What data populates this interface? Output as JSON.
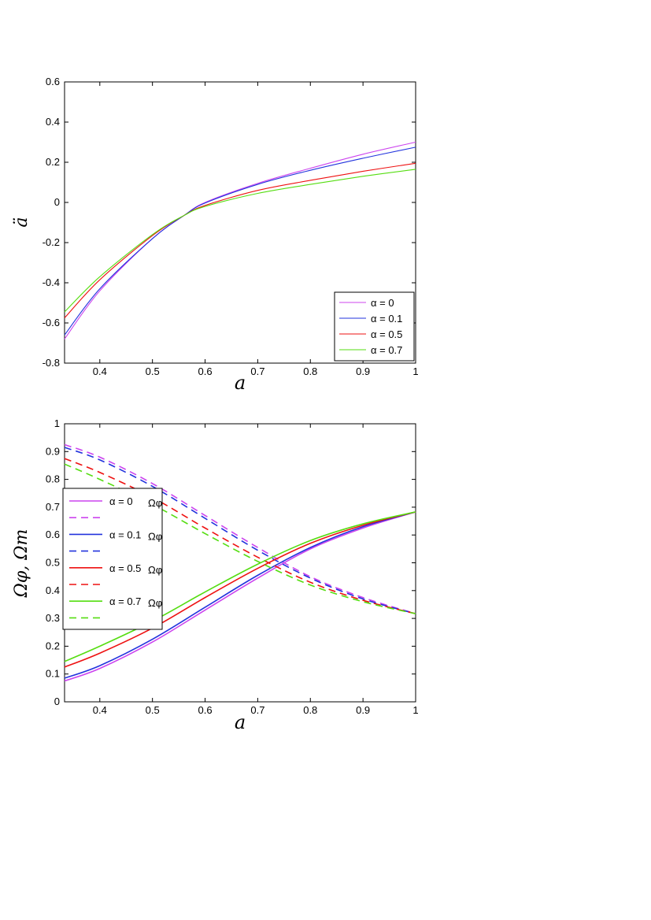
{
  "chart_data": [
    {
      "type": "line",
      "xlabel": "a",
      "ylabel": "ä",
      "xlim": [
        0.333,
        1
      ],
      "ylim": [
        -0.8,
        0.6
      ],
      "xticks": [
        0.4,
        0.5,
        0.6,
        0.7,
        0.8,
        0.9,
        1
      ],
      "xtick_labels": [
        "0.4",
        "0.5",
        "0.6",
        "0.7",
        "0.8",
        "0.9",
        "1"
      ],
      "yticks": [
        -0.8,
        -0.6,
        -0.4,
        -0.2,
        0,
        0.2,
        0.4,
        0.6
      ],
      "ytick_labels": [
        "-0.8",
        "-0.6",
        "-0.4",
        "-0.2",
        "0",
        "0.2",
        "0.4",
        "0.6"
      ],
      "legend_position": "bottom-right",
      "grid": false,
      "series": [
        {
          "name": "α = 0",
          "color": "#cc44ee",
          "x": [
            0.333,
            0.4,
            0.5,
            0.56,
            0.6,
            0.7,
            0.8,
            0.9,
            1
          ],
          "y": [
            -0.68,
            -0.44,
            -0.18,
            -0.065,
            0.0,
            0.095,
            0.17,
            0.24,
            0.3
          ]
        },
        {
          "name": "α = 0.1",
          "color": "#2233dd",
          "x": [
            0.333,
            0.4,
            0.5,
            0.56,
            0.6,
            0.7,
            0.8,
            0.9,
            1
          ],
          "y": [
            -0.66,
            -0.43,
            -0.18,
            -0.065,
            -0.003,
            0.09,
            0.16,
            0.22,
            0.275
          ]
        },
        {
          "name": "α = 0.5",
          "color": "#ee1111",
          "x": [
            0.333,
            0.4,
            0.5,
            0.56,
            0.6,
            0.7,
            0.8,
            0.9,
            1
          ],
          "y": [
            -0.575,
            -0.385,
            -0.165,
            -0.065,
            -0.015,
            0.06,
            0.11,
            0.155,
            0.195
          ]
        },
        {
          "name": "α = 0.7",
          "color": "#55dd11",
          "x": [
            0.333,
            0.4,
            0.5,
            0.56,
            0.6,
            0.7,
            0.8,
            0.9,
            1
          ],
          "y": [
            -0.545,
            -0.37,
            -0.16,
            -0.065,
            -0.02,
            0.045,
            0.09,
            0.13,
            0.165
          ]
        }
      ]
    },
    {
      "type": "line",
      "xlabel": "a",
      "ylabel": "Ωφ, Ωm",
      "xlim": [
        0.333,
        1
      ],
      "ylim": [
        0,
        1
      ],
      "xticks": [
        0.4,
        0.5,
        0.6,
        0.7,
        0.8,
        0.9,
        1
      ],
      "xtick_labels": [
        "0.4",
        "0.5",
        "0.6",
        "0.7",
        "0.8",
        "0.9",
        "1"
      ],
      "yticks": [
        0,
        0.1,
        0.2,
        0.3,
        0.4,
        0.5,
        0.6,
        0.7,
        0.8,
        0.9,
        1
      ],
      "ytick_labels": [
        "0",
        "0.1",
        "0.2",
        "0.3",
        "0.4",
        "0.5",
        "0.6",
        "0.7",
        "0.8",
        "0.9",
        "1"
      ],
      "legend_position": "left",
      "grid": false,
      "series": [
        {
          "name": "α = 0",
          "symbol": "Ωφ",
          "color": "#cc44ee",
          "dash": false,
          "x": [
            0.333,
            0.4,
            0.5,
            0.6,
            0.7,
            0.8,
            0.9,
            1
          ],
          "y": [
            0.075,
            0.12,
            0.215,
            0.33,
            0.445,
            0.55,
            0.625,
            0.683
          ]
        },
        {
          "name": "",
          "color": "#cc44ee",
          "dash": true,
          "x": [
            0.333,
            0.4,
            0.5,
            0.6,
            0.7,
            0.8,
            0.9,
            1
          ],
          "y": [
            0.925,
            0.88,
            0.785,
            0.67,
            0.555,
            0.45,
            0.375,
            0.317
          ]
        },
        {
          "name": "α = 0.1",
          "symbol": "Ωφ",
          "color": "#2233dd",
          "dash": false,
          "x": [
            0.333,
            0.4,
            0.5,
            0.6,
            0.7,
            0.8,
            0.9,
            1
          ],
          "y": [
            0.085,
            0.13,
            0.225,
            0.34,
            0.455,
            0.555,
            0.63,
            0.683
          ]
        },
        {
          "name": "",
          "color": "#2233dd",
          "dash": true,
          "x": [
            0.333,
            0.4,
            0.5,
            0.6,
            0.7,
            0.8,
            0.9,
            1
          ],
          "y": [
            0.915,
            0.87,
            0.775,
            0.66,
            0.545,
            0.445,
            0.37,
            0.317
          ]
        },
        {
          "name": "α = 0.5",
          "symbol": "Ωφ",
          "color": "#ee1111",
          "dash": false,
          "x": [
            0.333,
            0.4,
            0.5,
            0.6,
            0.7,
            0.8,
            0.9,
            1
          ],
          "y": [
            0.125,
            0.175,
            0.265,
            0.375,
            0.48,
            0.57,
            0.635,
            0.683
          ]
        },
        {
          "name": "",
          "color": "#ee1111",
          "dash": true,
          "x": [
            0.333,
            0.4,
            0.5,
            0.6,
            0.7,
            0.8,
            0.9,
            1
          ],
          "y": [
            0.875,
            0.825,
            0.735,
            0.625,
            0.52,
            0.43,
            0.365,
            0.317
          ]
        },
        {
          "name": "α = 0.7",
          "symbol": "Ωφ",
          "color": "#55dd11",
          "dash": false,
          "x": [
            0.333,
            0.4,
            0.5,
            0.6,
            0.7,
            0.8,
            0.9,
            1
          ],
          "y": [
            0.145,
            0.2,
            0.29,
            0.395,
            0.495,
            0.58,
            0.64,
            0.683
          ]
        },
        {
          "name": "",
          "color": "#55dd11",
          "dash": true,
          "x": [
            0.333,
            0.4,
            0.5,
            0.6,
            0.7,
            0.8,
            0.9,
            1
          ],
          "y": [
            0.855,
            0.8,
            0.71,
            0.605,
            0.505,
            0.42,
            0.36,
            0.317
          ]
        }
      ]
    }
  ]
}
